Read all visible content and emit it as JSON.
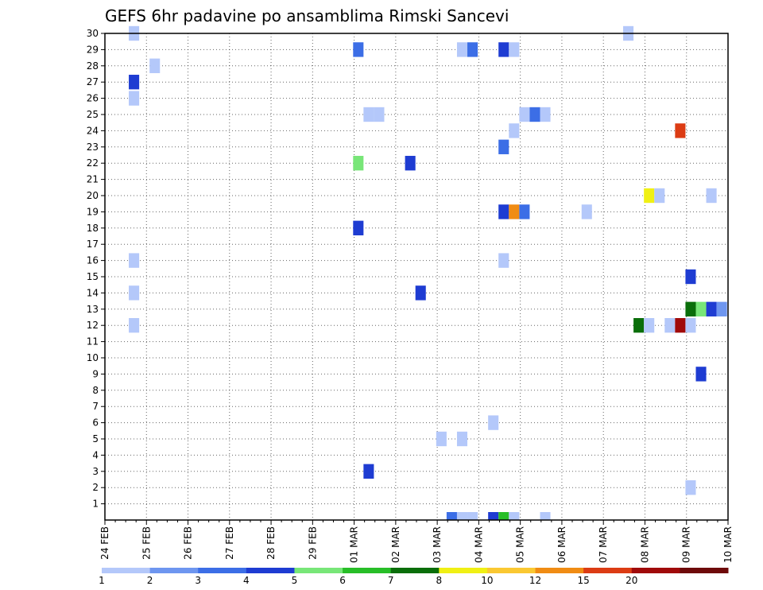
{
  "chart_data": {
    "type": "heatmap",
    "title": "GEFS 6hr padavine po ansamblima Rimski Sancevi",
    "x_tick_labels": [
      "24 FEB",
      "25 FEB",
      "26 FEB",
      "27 FEB",
      "28 FEB",
      "29 FEB",
      "01 MAR",
      "02 MAR",
      "03 MAR",
      "04 MAR",
      "05 MAR",
      "06 MAR",
      "07 MAR",
      "08 MAR",
      "09 MAR",
      "10 MAR"
    ],
    "y_tick_labels": [
      "1",
      "2",
      "3",
      "4",
      "5",
      "6",
      "7",
      "8",
      "9",
      "10",
      "11",
      "12",
      "13",
      "14",
      "15",
      "16",
      "17",
      "18",
      "19",
      "20",
      "21",
      "22",
      "23",
      "24",
      "25",
      "26",
      "27",
      "28",
      "29",
      "30"
    ],
    "ylim": [
      0,
      30
    ],
    "grid": true,
    "legend": {
      "placement": "bottom",
      "bounds": [
        "1",
        "2",
        "3",
        "4",
        "5",
        "6",
        "7",
        "8",
        "10",
        "12",
        "15",
        "20"
      ],
      "colors": [
        "#b4c8fa",
        "#6e96f0",
        "#3c6ee6",
        "#1e3cd2",
        "#78e678",
        "#28be28",
        "#0a6e0a",
        "#f0f014",
        "#fac832",
        "#f08c14",
        "#dc3c14",
        "#a00a0a",
        "#6e0a0a"
      ]
    },
    "cells": [
      {
        "x": 0.7,
        "y": 30,
        "c": 0
      },
      {
        "x": 0.7,
        "y": 27,
        "c": 3
      },
      {
        "x": 0.7,
        "y": 26,
        "c": 0
      },
      {
        "x": 0.7,
        "y": 16,
        "c": 0
      },
      {
        "x": 0.7,
        "y": 14,
        "c": 0
      },
      {
        "x": 0.7,
        "y": 12,
        "c": 0
      },
      {
        "x": 1.2,
        "y": 28,
        "c": 0
      },
      {
        "x": 6.1,
        "y": 29,
        "c": 2
      },
      {
        "x": 6.1,
        "y": 22,
        "c": 4
      },
      {
        "x": 6.1,
        "y": 18,
        "c": 3
      },
      {
        "x": 6.35,
        "y": 25,
        "c": 0
      },
      {
        "x": 6.6,
        "y": 25,
        "c": 0
      },
      {
        "x": 6.35,
        "y": 3,
        "c": 3
      },
      {
        "x": 7.35,
        "y": 22,
        "c": 3
      },
      {
        "x": 7.6,
        "y": 14,
        "c": 3
      },
      {
        "x": 8.1,
        "y": 5,
        "c": 0
      },
      {
        "x": 8.6,
        "y": 5,
        "c": 0
      },
      {
        "x": 8.6,
        "y": 29,
        "c": 0
      },
      {
        "x": 8.85,
        "y": 29,
        "c": 2
      },
      {
        "x": 9.35,
        "y": 6,
        "c": 0
      },
      {
        "x": 9.6,
        "y": 29,
        "c": 3
      },
      {
        "x": 9.85,
        "y": 29,
        "c": 0
      },
      {
        "x": 9.6,
        "y": 23,
        "c": 2
      },
      {
        "x": 9.85,
        "y": 24,
        "c": 0
      },
      {
        "x": 10.1,
        "y": 25,
        "c": 0
      },
      {
        "x": 10.35,
        "y": 25,
        "c": 2
      },
      {
        "x": 10.6,
        "y": 25,
        "c": 0
      },
      {
        "x": 9.6,
        "y": 19,
        "c": 3
      },
      {
        "x": 9.85,
        "y": 19,
        "c": 9
      },
      {
        "x": 10.1,
        "y": 19,
        "c": 2
      },
      {
        "x": 9.6,
        "y": 16,
        "c": 0
      },
      {
        "x": 11.6,
        "y": 19,
        "c": 0
      },
      {
        "x": 12.6,
        "y": 30,
        "c": 0
      },
      {
        "x": 13.1,
        "y": 20,
        "c": 7
      },
      {
        "x": 13.35,
        "y": 20,
        "c": 0
      },
      {
        "x": 13.85,
        "y": 24,
        "c": 10
      },
      {
        "x": 14.6,
        "y": 20,
        "c": 0
      },
      {
        "x": 12.85,
        "y": 12,
        "c": 6
      },
      {
        "x": 13.1,
        "y": 12,
        "c": 0
      },
      {
        "x": 13.6,
        "y": 12,
        "c": 0
      },
      {
        "x": 13.85,
        "y": 12,
        "c": 11
      },
      {
        "x": 14.1,
        "y": 12,
        "c": 0
      },
      {
        "x": 14.1,
        "y": 13,
        "c": 6
      },
      {
        "x": 14.35,
        "y": 13,
        "c": 4
      },
      {
        "x": 14.6,
        "y": 13,
        "c": 3
      },
      {
        "x": 14.85,
        "y": 13,
        "c": 1
      },
      {
        "x": 14.1,
        "y": 15,
        "c": 3
      },
      {
        "x": 14.35,
        "y": 9,
        "c": 3
      },
      {
        "x": 14.1,
        "y": 2,
        "c": 0
      }
    ],
    "bottom_strip": [
      {
        "x": 8.35,
        "c": 2
      },
      {
        "x": 8.6,
        "c": 0
      },
      {
        "x": 8.85,
        "c": 0
      },
      {
        "x": 9.35,
        "c": 3
      },
      {
        "x": 9.6,
        "c": 5
      },
      {
        "x": 9.85,
        "c": 0
      },
      {
        "x": 10.6,
        "c": 0
      }
    ]
  }
}
